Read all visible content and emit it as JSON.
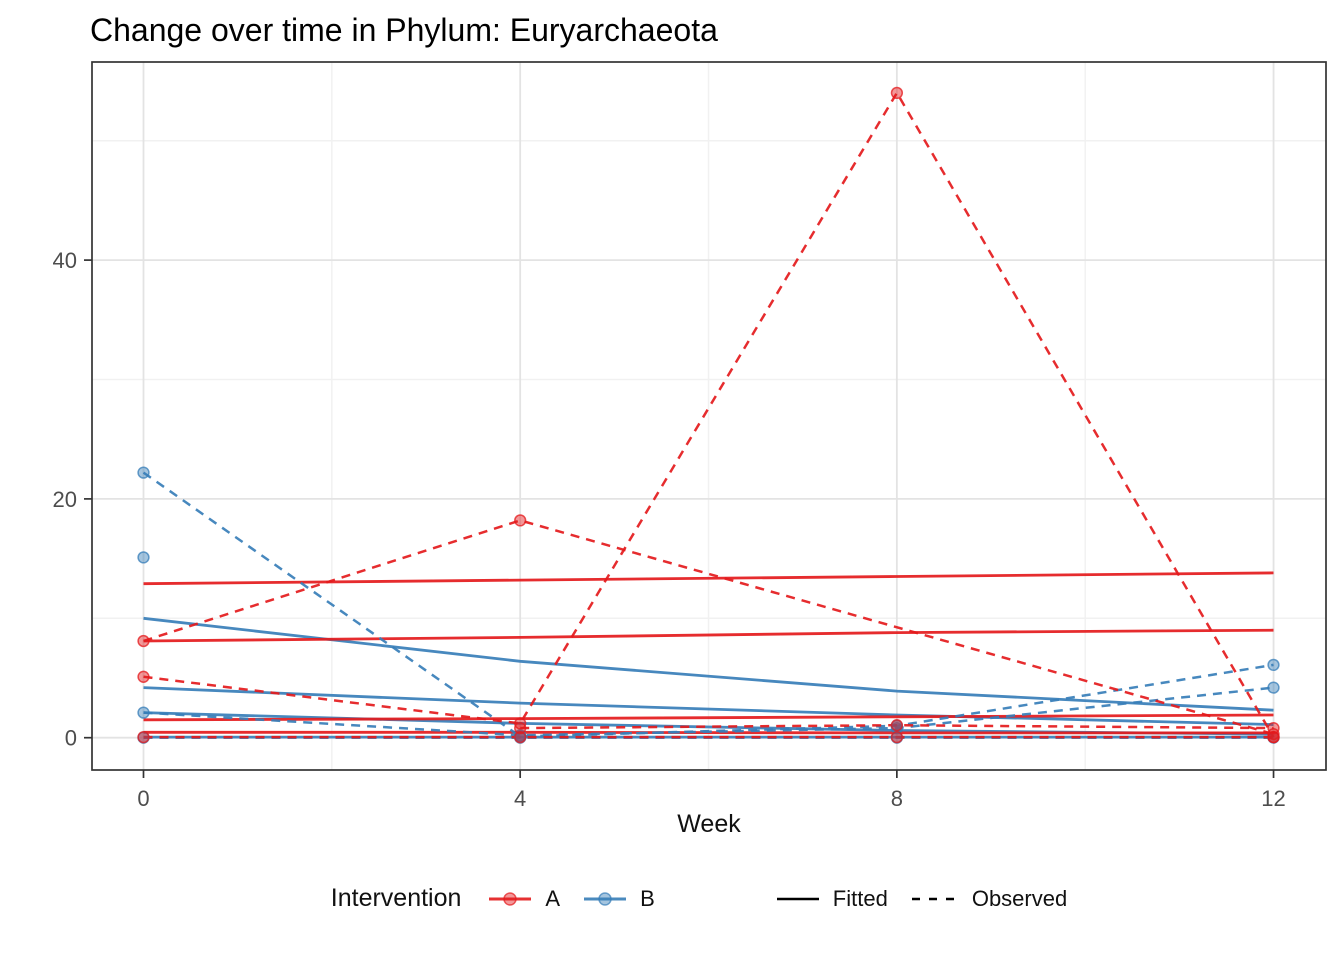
{
  "title": "Change over time in Phylum: Euryarchaeota",
  "x_axis": {
    "label": "Week",
    "ticks": [
      "0",
      "4",
      "8",
      "12"
    ],
    "tick_values": [
      0,
      4,
      8,
      12
    ]
  },
  "y_axis": {
    "ticks": [
      "0",
      "20",
      "40"
    ],
    "tick_values": [
      0,
      20,
      40
    ]
  },
  "legend": {
    "title": "Intervention",
    "group_a_label": "A",
    "group_b_label": "B",
    "linetype_solid_label": "Fitted",
    "linetype_dashed_label": "Observed"
  },
  "colors": {
    "A": "#E41A1C",
    "B": "#377EB8",
    "grid_major": "#E3E3E3",
    "grid_minor": "#F1F1F1",
    "panel_border": "#333333",
    "tick_label": "#4D4D4D"
  },
  "chart_data": {
    "type": "line",
    "title": "Change over time in Phylum: Euryarchaeota",
    "xlabel": "Week",
    "ylabel": "",
    "x_ticks": [
      0,
      4,
      8,
      12
    ],
    "y_ticks": [
      0,
      20,
      40
    ],
    "x_minor": [
      2,
      6,
      10
    ],
    "y_minor": [
      10,
      30,
      50
    ],
    "xlim": [
      -0.55,
      12.56
    ],
    "ylim": [
      -2.7,
      56.6
    ],
    "legend_position": "bottom",
    "grid": true,
    "series": [
      {
        "id": "B1",
        "group": "B",
        "linetype_fitted": "solid",
        "linetype_observed": "dashed",
        "fitted": {
          "weeks": [
            0,
            4,
            8,
            12
          ],
          "values": [
            10.0,
            6.4,
            3.9,
            2.3
          ]
        },
        "observed": {
          "weeks": [
            0,
            4,
            8,
            12
          ],
          "values": [
            22.2,
            0.1,
            1.0,
            6.1
          ]
        }
      },
      {
        "id": "B2",
        "group": "B",
        "linetype_fitted": "solid",
        "linetype_observed": "dashed",
        "fitted": {
          "weeks": [
            0,
            4,
            8,
            12
          ],
          "values": [
            4.2,
            2.9,
            1.9,
            1.1
          ]
        },
        "observed": {
          "weeks": [
            0
          ],
          "values": [
            15.1
          ]
        }
      },
      {
        "id": "B3",
        "group": "B",
        "linetype_fitted": "solid",
        "linetype_observed": "dashed",
        "fitted": {
          "weeks": [
            0,
            4,
            8,
            12
          ],
          "values": [
            2.1,
            1.2,
            0.6,
            0.3
          ]
        },
        "observed": {
          "weeks": [
            0,
            4,
            8,
            12
          ],
          "values": [
            2.1,
            0.2,
            0.8,
            4.2
          ]
        }
      },
      {
        "id": "B4",
        "group": "B",
        "linetype_fitted": "solid",
        "linetype_observed": "dashed",
        "fitted": {
          "weeks": [
            0,
            4,
            8,
            12
          ],
          "values": [
            0.05,
            0.05,
            0.05,
            0.05
          ]
        },
        "observed": {
          "weeks": [
            0,
            4,
            8,
            12
          ],
          "values": [
            0.0,
            0.0,
            0.0,
            0.0
          ]
        }
      },
      {
        "id": "A1",
        "group": "A",
        "linetype_fitted": "solid",
        "linetype_observed": "dashed",
        "fitted": {
          "weeks": [
            0,
            4,
            8,
            12
          ],
          "values": [
            12.9,
            13.2,
            13.5,
            13.8
          ]
        },
        "observed": {
          "weeks": [
            0,
            4,
            12
          ],
          "values": [
            8.1,
            18.2,
            0.3
          ]
        }
      },
      {
        "id": "A2",
        "group": "A",
        "linetype_fitted": "solid",
        "linetype_observed": "dashed",
        "fitted": {
          "weeks": [
            0,
            4,
            8,
            12
          ],
          "values": [
            8.1,
            8.4,
            8.8,
            9.0
          ]
        },
        "observed": {
          "weeks": [
            0,
            4,
            8,
            12
          ],
          "values": [
            5.1,
            1.2,
            54.0,
            0.05
          ]
        }
      },
      {
        "id": "A3",
        "group": "A",
        "linetype_fitted": "solid",
        "linetype_observed": "dashed",
        "fitted": {
          "weeks": [
            0,
            4,
            8,
            12
          ],
          "values": [
            1.5,
            1.6,
            1.75,
            1.9
          ]
        },
        "observed": {
          "weeks": [
            4,
            8,
            12
          ],
          "values": [
            0.8,
            1.05,
            0.8
          ]
        }
      },
      {
        "id": "A4",
        "group": "A",
        "linetype_fitted": "solid",
        "linetype_observed": "dashed",
        "fitted": {
          "weeks": [
            0,
            4,
            8,
            12
          ],
          "values": [
            0.45,
            0.45,
            0.4,
            0.4
          ]
        },
        "observed": {
          "weeks": [
            0,
            4,
            8,
            12
          ],
          "values": [
            0.05,
            0.05,
            0.05,
            0.05
          ]
        }
      }
    ]
  }
}
